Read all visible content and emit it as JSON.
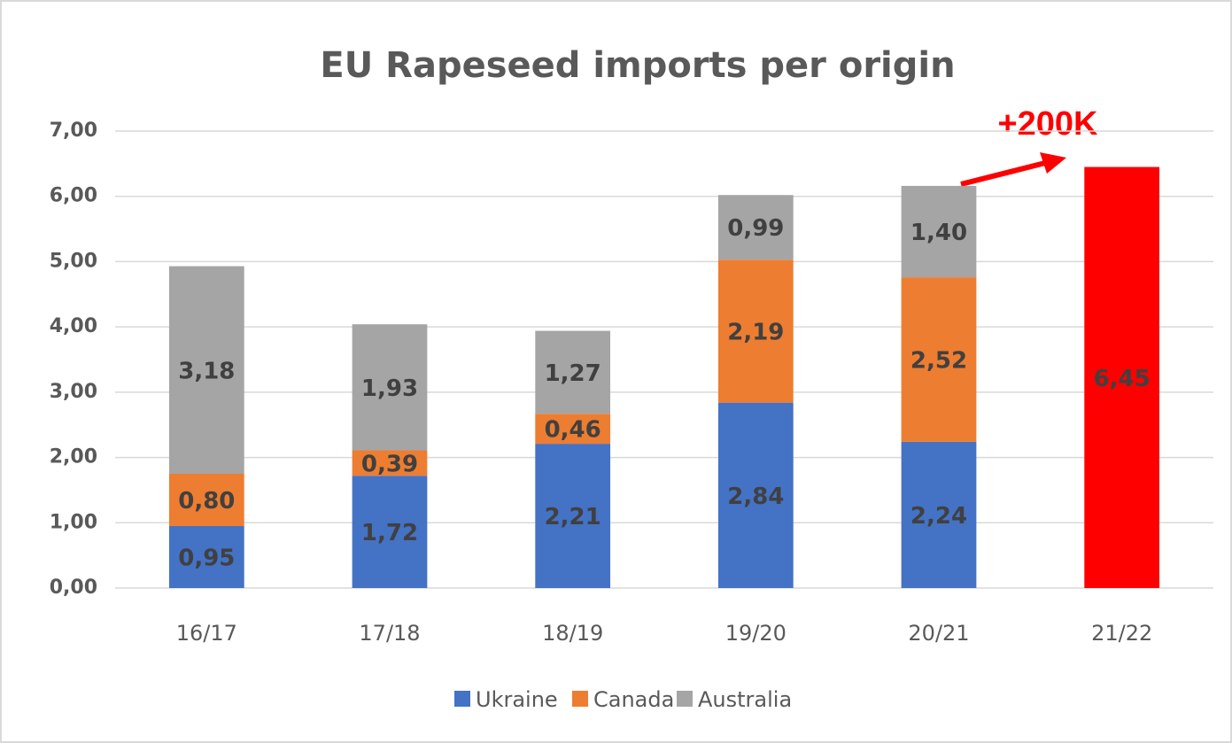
{
  "chart_data": {
    "type": "stacked_bar",
    "title": "EU Rapeseed imports per origin",
    "categories": [
      "16/17",
      "17/18",
      "18/19",
      "19/20",
      "20/21",
      "21/22"
    ],
    "series": [
      {
        "name": "Ukraine",
        "color": "#4472c4",
        "values": [
          0.95,
          1.72,
          2.21,
          2.84,
          2.24,
          null
        ],
        "value_labels": [
          "0,95",
          "1,72",
          "2,21",
          "2,84",
          "2,24",
          null
        ]
      },
      {
        "name": "Canada",
        "color": "#ed7d31",
        "values": [
          0.8,
          0.39,
          0.46,
          2.19,
          2.52,
          null
        ],
        "value_labels": [
          "0,80",
          "0,39",
          "0,46",
          "2,19",
          "2,52",
          null
        ]
      },
      {
        "name": "Australia",
        "color": "#a5a5a5",
        "values": [
          3.18,
          1.93,
          1.27,
          0.99,
          1.4,
          null
        ],
        "value_labels": [
          "3,18",
          "1,93",
          "1,27",
          "0,99",
          "1,40",
          null
        ]
      }
    ],
    "highlight_bar": {
      "color": "#ff0000",
      "values": [
        null,
        null,
        null,
        null,
        null,
        6.45
      ],
      "value_labels": [
        null,
        null,
        null,
        null,
        null,
        "6,45"
      ]
    },
    "annotation": "+200K",
    "ylim": [
      0,
      7
    ],
    "yticks": [
      {
        "value": 0,
        "label": "0,00"
      },
      {
        "value": 1,
        "label": "1,00"
      },
      {
        "value": 2,
        "label": "2,00"
      },
      {
        "value": 3,
        "label": "3,00"
      },
      {
        "value": 4,
        "label": "4,00"
      },
      {
        "value": 5,
        "label": "5,00"
      },
      {
        "value": 6,
        "label": "6,00"
      },
      {
        "value": 7,
        "label": "7,00"
      }
    ],
    "grid": true,
    "legend": "bottom"
  }
}
